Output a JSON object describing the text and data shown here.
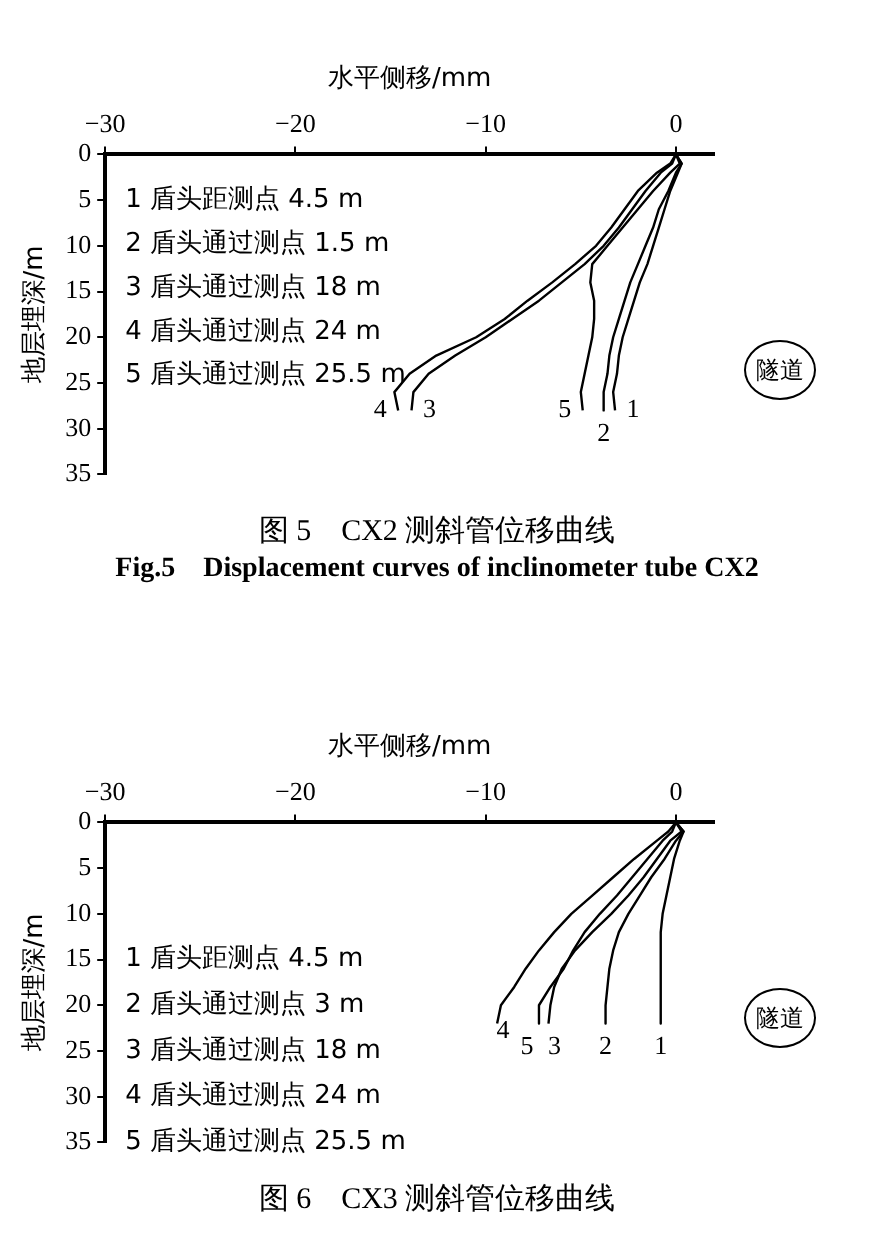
{
  "chart_data": [
    {
      "type": "line",
      "title": "图 5　CX2 测斜管位移曲线",
      "subtitle": "Fig.5　Displacement curves of inclinometer tube CX2",
      "xlabel": "水平侧移/mm",
      "ylabel": "地层埋深/m",
      "xlim": [
        -30,
        2
      ],
      "xticks": [
        -30,
        -20,
        -10,
        0
      ],
      "ylim": [
        35,
        0
      ],
      "yticks": [
        0,
        5,
        10,
        15,
        20,
        25,
        30,
        35
      ],
      "grid": false,
      "legend": false,
      "marker": "none",
      "line_style": "solid",
      "annotations": [
        "1 盾头距测点 4.5 m",
        "2 盾头通过测点 1.5 m",
        "3 盾头通过测点 18 m",
        "4 盾头通过测点 24 m",
        "5 盾头通过测点 25.5 m",
        "隧道"
      ],
      "series": [
        {
          "name": "1",
          "color": "#000000",
          "x": [
            0,
            0.3,
            0.1,
            -0.3,
            -0.6,
            -0.9,
            -1.2,
            -1.5,
            -1.9,
            -2.2,
            -2.5,
            -2.8,
            -3.0,
            -3.1,
            -3.3,
            -3.2
          ],
          "values": [
            0,
            1,
            2,
            4,
            6,
            8,
            10,
            12,
            14,
            16,
            18,
            20,
            22,
            24,
            26,
            28
          ]
        },
        {
          "name": "2",
          "color": "#000000",
          "x": [
            0,
            0.3,
            0,
            -0.4,
            -0.9,
            -1.2,
            -1.6,
            -2.0,
            -2.4,
            -2.7,
            -3.0,
            -3.3,
            -3.5,
            -3.6,
            -3.8,
            -3.8
          ],
          "values": [
            0,
            1,
            2,
            4,
            6,
            8,
            10,
            12,
            14,
            16,
            18,
            20,
            22,
            24,
            26,
            28
          ]
        },
        {
          "name": "3",
          "color": "#000000",
          "x": [
            0,
            -0.2,
            -0.8,
            -1.6,
            -2.3,
            -3.0,
            -3.8,
            -4.8,
            -6.0,
            -7.2,
            -8.6,
            -10.0,
            -11.6,
            -13.0,
            -13.8,
            -13.9
          ],
          "values": [
            0,
            1,
            2,
            4,
            6,
            8,
            10,
            12,
            14,
            16,
            18,
            20,
            22,
            24,
            26,
            28
          ]
        },
        {
          "name": "4",
          "color": "#000000",
          "x": [
            0,
            -0.3,
            -1.0,
            -2.0,
            -2.7,
            -3.4,
            -4.2,
            -5.3,
            -6.5,
            -7.8,
            -9.0,
            -10.5,
            -12.6,
            -14.0,
            -14.8,
            -14.6
          ],
          "values": [
            0,
            1,
            2,
            4,
            6,
            8,
            10,
            12,
            14,
            16,
            18,
            20,
            22,
            24,
            26,
            28
          ]
        },
        {
          "name": "5",
          "color": "#000000",
          "x": [
            0,
            0.2,
            -0.3,
            -1.2,
            -2.0,
            -2.8,
            -3.6,
            -4.4,
            -4.5,
            -4.3,
            -4.3,
            -4.4,
            -4.6,
            -4.8,
            -5.0,
            -4.9
          ],
          "values": [
            0,
            1,
            2,
            4,
            6,
            8,
            10,
            12,
            14,
            16,
            18,
            20,
            22,
            24,
            26,
            28
          ]
        }
      ]
    },
    {
      "type": "line",
      "title": "图 6　CX3 测斜管位移曲线",
      "xlabel": "水平侧移/mm",
      "ylabel": "地层埋深/m",
      "xlim": [
        -30,
        2
      ],
      "xticks": [
        -30,
        -20,
        -10,
        0
      ],
      "ylim": [
        35,
        0
      ],
      "yticks": [
        0,
        5,
        10,
        15,
        20,
        25,
        30,
        35
      ],
      "grid": false,
      "legend": false,
      "marker": "none",
      "line_style": "solid",
      "annotations": [
        "1 盾头距测点 4.5 m",
        "2 盾头通过测点 3 m",
        "3 盾头通过测点 18 m",
        "4 盾头通过测点 24 m",
        "5 盾头通过测点 25.5 m",
        "隧道"
      ],
      "series": [
        {
          "name": "1",
          "color": "#000000",
          "x": [
            0,
            0.4,
            0.2,
            -0.1,
            -0.3,
            -0.5,
            -0.7,
            -0.8,
            -0.8,
            -0.8,
            -0.8,
            -0.8,
            -0.8
          ],
          "values": [
            0,
            1,
            2,
            4,
            6,
            8,
            10,
            12,
            14,
            16,
            18,
            20,
            22
          ]
        },
        {
          "name": "2",
          "color": "#000000",
          "x": [
            0,
            0.4,
            0,
            -0.6,
            -1.3,
            -1.9,
            -2.5,
            -3.0,
            -3.3,
            -3.5,
            -3.6,
            -3.7,
            -3.7
          ],
          "values": [
            0,
            1,
            2,
            4,
            6,
            8,
            10,
            12,
            14,
            16,
            18,
            20,
            22
          ]
        },
        {
          "name": "3",
          "color": "#000000",
          "x": [
            0,
            0.3,
            -0.3,
            -1.0,
            -1.7,
            -2.5,
            -3.4,
            -4.4,
            -5.3,
            -6.0,
            -6.4,
            -6.6,
            -6.7
          ],
          "values": [
            0,
            1,
            2,
            4,
            6,
            8,
            10,
            12,
            14,
            16,
            18,
            20,
            22
          ]
        },
        {
          "name": "4",
          "color": "#000000",
          "x": [
            0,
            -0.4,
            -1.0,
            -2.2,
            -3.3,
            -4.4,
            -5.5,
            -6.4,
            -7.2,
            -7.9,
            -8.5,
            -9.2,
            -9.4
          ],
          "values": [
            0,
            1,
            2,
            4,
            6,
            8,
            10,
            12,
            14,
            16,
            18,
            20,
            22
          ]
        },
        {
          "name": "5",
          "color": "#000000",
          "x": [
            0,
            -0.2,
            -0.7,
            -1.5,
            -2.3,
            -3.1,
            -4.0,
            -4.8,
            -5.4,
            -5.9,
            -6.6,
            -7.2,
            -7.2
          ],
          "values": [
            0,
            1,
            2,
            4,
            6,
            8,
            10,
            12,
            14,
            16,
            18,
            20,
            22
          ]
        }
      ]
    }
  ]
}
